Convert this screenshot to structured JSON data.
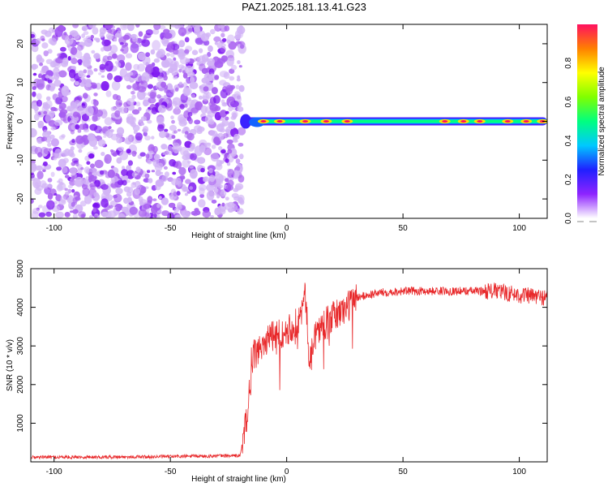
{
  "chart_data": [
    {
      "type": "heatmap",
      "title": "PAZ1.2025.181.13.41.G23",
      "xlabel": "Height of straight line (km)",
      "ylabel": "Frequency (Hz)",
      "xlim": [
        -110,
        112
      ],
      "ylim": [
        -25,
        25
      ],
      "xticks": [
        -100,
        -50,
        0,
        50,
        100
      ],
      "yticks": [
        -20,
        -10,
        0,
        10,
        20
      ],
      "noise_region_x": [
        -110,
        -19
      ],
      "signal_frequency_hz": 0,
      "signal_start_x": -19,
      "bright_spots_x": [
        -10,
        -3,
        8,
        17,
        26,
        68,
        76,
        83,
        95,
        103,
        110
      ],
      "colorbar": {
        "label": "Normalized spectral amplitude",
        "range": [
          0,
          1
        ],
        "ticks": [
          "0.0",
          "0.2",
          "0.4",
          "0.6",
          "0.8"
        ],
        "colors": [
          "#ffffff",
          "#8e24ff",
          "#2020ff",
          "#00c8ff",
          "#00ff80",
          "#80ff00",
          "#ffff00",
          "#ff8000",
          "#ff1060"
        ]
      }
    },
    {
      "type": "line",
      "xlabel": "Height of straight line (km)",
      "ylabel": "SNR (10 * v/v)",
      "xlim": [
        -110,
        112
      ],
      "ylim": [
        0,
        5000
      ],
      "xticks": [
        -100,
        -50,
        0,
        50,
        100
      ],
      "yticks": [
        1000,
        2000,
        3000,
        4000,
        5000
      ],
      "color": "#e8282a",
      "profile_x": [
        -110,
        -60,
        -20,
        -17,
        -15,
        -13,
        -10,
        -7,
        -4,
        -1,
        2,
        5,
        8,
        10,
        12,
        15,
        20,
        25,
        30,
        40,
        50,
        70,
        90,
        100,
        112
      ],
      "profile_y": [
        120,
        130,
        160,
        1200,
        2700,
        2800,
        3100,
        3200,
        3300,
        3400,
        3500,
        3600,
        4300,
        2500,
        3300,
        3500,
        3750,
        3950,
        4250,
        4380,
        4420,
        4420,
        4420,
        4320,
        4250
      ]
    }
  ]
}
